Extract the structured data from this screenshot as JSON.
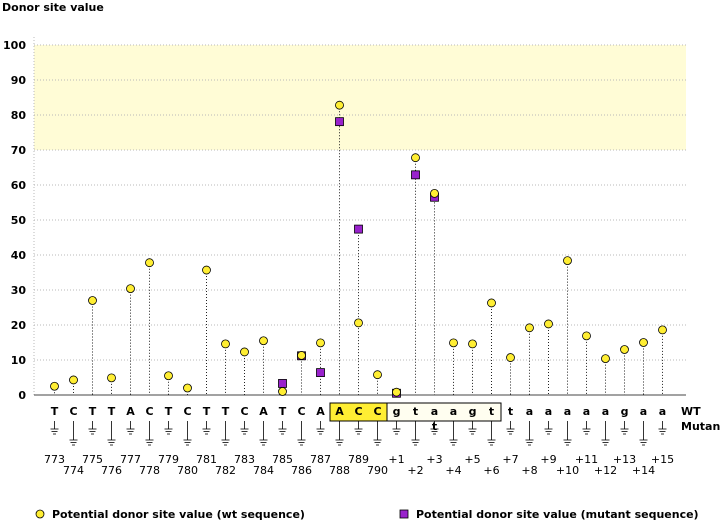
{
  "chart_data": {
    "type": "scatter",
    "title": "Donor site value",
    "ylabel": "Donor site value",
    "ylim": [
      0,
      100
    ],
    "yticks": [
      0,
      10,
      20,
      30,
      40,
      50,
      60,
      70,
      80,
      90,
      100
    ],
    "grid": true,
    "highlight_band": [
      70,
      100
    ],
    "positions": [
      {
        "wt": "T",
        "num": "773"
      },
      {
        "wt": "C",
        "num": "774"
      },
      {
        "wt": "T",
        "num": "775"
      },
      {
        "wt": "T",
        "num": "776"
      },
      {
        "wt": "A",
        "num": "777"
      },
      {
        "wt": "C",
        "num": "778"
      },
      {
        "wt": "T",
        "num": "779"
      },
      {
        "wt": "C",
        "num": "780"
      },
      {
        "wt": "T",
        "num": "781"
      },
      {
        "wt": "T",
        "num": "782"
      },
      {
        "wt": "C",
        "num": "783"
      },
      {
        "wt": "A",
        "num": "784"
      },
      {
        "wt": "T",
        "num": "785"
      },
      {
        "wt": "C",
        "num": "786"
      },
      {
        "wt": "A",
        "num": "787"
      },
      {
        "wt": "A",
        "num": "788"
      },
      {
        "wt": "C",
        "num": "789"
      },
      {
        "wt": "C",
        "num": "790"
      },
      {
        "wt": "g",
        "num": "+1"
      },
      {
        "wt": "t",
        "num": "+2"
      },
      {
        "wt": "a",
        "num": "+3"
      },
      {
        "wt": "a",
        "num": "+4"
      },
      {
        "wt": "g",
        "num": "+5"
      },
      {
        "wt": "t",
        "num": "+6"
      },
      {
        "wt": "t",
        "num": "+7"
      },
      {
        "wt": "a",
        "num": "+8"
      },
      {
        "wt": "a",
        "num": "+9"
      },
      {
        "wt": "a",
        "num": "+10"
      },
      {
        "wt": "a",
        "num": "+11"
      },
      {
        "wt": "a",
        "num": "+12"
      },
      {
        "wt": "g",
        "num": "+13"
      },
      {
        "wt": "a",
        "num": "+14"
      },
      {
        "wt": "a",
        "num": "+15"
      }
    ],
    "mutant_letters": [
      {
        "index": 20,
        "letter": "t"
      }
    ],
    "exon_box": [
      15,
      17
    ],
    "intron_box": [
      18,
      23
    ],
    "series": [
      {
        "name": "Potential donor site value (wt sequence)",
        "marker": "circle",
        "color": "#ffee33",
        "values": [
          2.5,
          4.3,
          27,
          4.9,
          30.4,
          37.8,
          5.5,
          2.0,
          35.7,
          14.6,
          12.3,
          15.5,
          1.0,
          11.3,
          14.9,
          82.8,
          20.6,
          5.8,
          0.8,
          67.8,
          57.6,
          14.9,
          14.6,
          26.3,
          10.7,
          19.2,
          20.3,
          38.4,
          16.9,
          10.4,
          13.0,
          15.0,
          18.6
        ]
      },
      {
        "name": "Potential donor site value (mutant sequence)",
        "marker": "square",
        "color": "#9922cc",
        "values": [
          null,
          null,
          null,
          null,
          null,
          null,
          null,
          null,
          null,
          null,
          null,
          null,
          3.3,
          11.2,
          6.4,
          78.1,
          47.4,
          null,
          0.5,
          62.9,
          56.5,
          null,
          null,
          null,
          null,
          null,
          null,
          null,
          null,
          null,
          null,
          null,
          null
        ]
      }
    ],
    "row_labels": {
      "wt": "WT",
      "mutant": "Mutant"
    },
    "legend": [
      {
        "marker": "circle",
        "label": "Potential donor site value (wt sequence)"
      },
      {
        "marker": "square",
        "label": "Potential donor site value (mutant sequence)"
      }
    ],
    "legend_position": "bottom"
  },
  "colors": {
    "band": "#fffcd6",
    "exon_fill": "#ffee33",
    "intron_fill": "#fffef0",
    "mutant_text": "#1a1aa0",
    "grid": "#b8b8b8"
  }
}
